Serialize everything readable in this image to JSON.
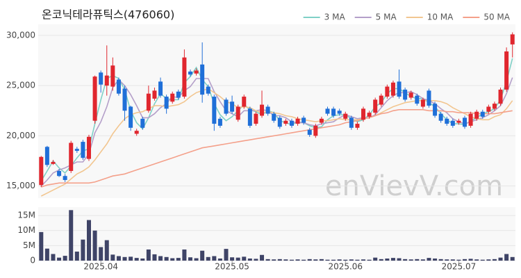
{
  "chart_data": [
    {
      "type": "candlestick",
      "title": "온코닉테라퓨틱스(476060)",
      "watermark": "enVievV.com",
      "up_color": "#e0262e",
      "down_color": "#1f6fd8",
      "grid": true,
      "legend": "top-right",
      "ylim": [
        13800,
        31100
      ],
      "yticks": [
        {
          "value": 15000,
          "label": "15,000"
        },
        {
          "value": 20000,
          "label": "20,000"
        },
        {
          "value": 25000,
          "label": "25,000"
        },
        {
          "value": 30000,
          "label": "30,000"
        }
      ],
      "open": [
        15100,
        18900,
        17200,
        16500,
        16000,
        16500,
        18700,
        19400,
        17700,
        21500,
        26300,
        25000,
        24900,
        25600,
        24700,
        22900,
        20200,
        21700,
        22500,
        23700,
        25400,
        23900,
        23400,
        24400,
        23900,
        26400,
        26200,
        27100,
        24900,
        23900,
        21700,
        23600,
        23400,
        21600,
        22900,
        22700,
        21200,
        22000,
        22900,
        22200,
        21800,
        21200,
        21500,
        21200,
        21800,
        20600,
        20000,
        21300,
        22700,
        22700,
        22500,
        21700,
        21800,
        20800,
        21600,
        21900,
        22300,
        23100,
        23900,
        24000,
        25400,
        24600,
        23800,
        24000,
        22900,
        24500,
        23200,
        22200,
        21700,
        21500,
        21300,
        21800,
        21000,
        21700,
        22400,
        22400,
        22700,
        23200,
        24600,
        29100
      ],
      "high": [
        18000,
        19000,
        17600,
        16700,
        16200,
        19500,
        18900,
        19600,
        20100,
        26000,
        26500,
        29000,
        27800,
        25800,
        25000,
        23000,
        20700,
        21900,
        25000,
        24800,
        25800,
        24100,
        24400,
        24600,
        28600,
        26600,
        26700,
        29300,
        25100,
        24100,
        21900,
        23800,
        24000,
        23100,
        24100,
        22900,
        22400,
        24500,
        23100,
        22400,
        22000,
        21700,
        21700,
        21900,
        22000,
        20800,
        21200,
        21900,
        22900,
        22900,
        22700,
        22400,
        22000,
        21400,
        22900,
        22500,
        23800,
        24200,
        25100,
        25500,
        26600,
        24800,
        24500,
        24200,
        23800,
        24700,
        23400,
        22400,
        21900,
        21700,
        21700,
        22000,
        22400,
        22600,
        22600,
        23100,
        23400,
        24800,
        28800,
        30300
      ],
      "low": [
        14900,
        16900,
        17100,
        15900,
        15400,
        16300,
        18300,
        17600,
        17500,
        21200,
        24300,
        24000,
        24500,
        24000,
        21500,
        20500,
        20000,
        20600,
        22300,
        23500,
        23800,
        22200,
        23200,
        23600,
        23700,
        25900,
        26000,
        23300,
        24000,
        20500,
        20800,
        22000,
        22200,
        21400,
        22700,
        20800,
        21000,
        21800,
        22000,
        21300,
        20700,
        21000,
        20800,
        21000,
        21100,
        19900,
        19800,
        21100,
        22000,
        21800,
        22000,
        21500,
        20600,
        20600,
        21400,
        21700,
        22100,
        22900,
        23700,
        23800,
        23700,
        23400,
        23600,
        23000,
        22700,
        22800,
        21800,
        21300,
        21000,
        20800,
        21100,
        20700,
        20800,
        21500,
        21700,
        22200,
        22500,
        23000,
        24400,
        27800
      ],
      "close": [
        17900,
        17100,
        17400,
        16000,
        15600,
        19300,
        18500,
        17800,
        19900,
        25900,
        25100,
        26000,
        27000,
        24200,
        22500,
        20800,
        20500,
        20800,
        24200,
        24500,
        24000,
        22700,
        24200,
        23800,
        27800,
        26100,
        26500,
        24100,
        24200,
        21200,
        21000,
        22200,
        22400,
        22900,
        23900,
        21000,
        22200,
        23100,
        22200,
        21500,
        20900,
        21500,
        21000,
        21700,
        21300,
        20100,
        21000,
        21700,
        22200,
        22000,
        22200,
        22200,
        20800,
        21200,
        22700,
        22300,
        23600,
        24000,
        24900,
        25300,
        23900,
        23600,
        24300,
        23200,
        23600,
        23000,
        22000,
        21500,
        21200,
        21000,
        21500,
        20900,
        22200,
        22400,
        21900,
        22900,
        23200,
        24600,
        28400,
        30100
      ],
      "series": [
        {
          "name": "3 MA",
          "color": "#7fd0c6",
          "values": [
            15500,
            16500,
            17500,
            16800,
            16300,
            17000,
            17800,
            18500,
            18700,
            21200,
            23600,
            25700,
            26000,
            25700,
            24600,
            22500,
            21300,
            20700,
            21800,
            23200,
            24200,
            23700,
            23600,
            23600,
            25300,
            25900,
            26800,
            25600,
            24900,
            23200,
            22100,
            21500,
            21900,
            22500,
            23100,
            22600,
            22400,
            22100,
            22500,
            22300,
            21500,
            21300,
            21100,
            21400,
            21300,
            21000,
            20800,
            20900,
            21600,
            22000,
            22100,
            22100,
            21700,
            21400,
            21600,
            22100,
            22900,
            23300,
            24200,
            24700,
            24700,
            24300,
            23900,
            23700,
            23700,
            23300,
            22900,
            22200,
            21600,
            21200,
            21200,
            21100,
            21500,
            21800,
            22200,
            22400,
            22700,
            23600,
            25400,
            27700
          ]
        },
        {
          "name": "5 MA",
          "color": "#b49fc9",
          "values": [
            15000,
            15600,
            16300,
            16600,
            16800,
            17100,
            17400,
            17400,
            18200,
            20300,
            21400,
            22900,
            24800,
            25600,
            25000,
            24100,
            23000,
            21800,
            21800,
            22200,
            22800,
            23200,
            23900,
            23800,
            24500,
            24900,
            25700,
            25700,
            25700,
            24400,
            23400,
            22500,
            22200,
            21900,
            22500,
            22500,
            22500,
            22600,
            22500,
            22000,
            22000,
            21800,
            21400,
            21300,
            21300,
            21100,
            21000,
            21200,
            21300,
            21400,
            21800,
            22100,
            21900,
            21700,
            21800,
            21800,
            22100,
            22800,
            23500,
            24000,
            24300,
            24300,
            24400,
            24100,
            23700,
            23500,
            23200,
            22700,
            22300,
            21700,
            21400,
            21200,
            21400,
            21600,
            21800,
            22100,
            22500,
            23000,
            24200,
            25800
          ]
        },
        {
          "name": "10 MA",
          "color": "#f2c690",
          "values": [
            14000,
            14300,
            14600,
            14900,
            15200,
            15700,
            16200,
            16500,
            16900,
            17600,
            18400,
            19200,
            20200,
            21000,
            21700,
            22100,
            22300,
            22400,
            22700,
            23000,
            23000,
            22900,
            23000,
            23100,
            23400,
            23900,
            24300,
            24500,
            24700,
            24300,
            23900,
            23400,
            23200,
            22800,
            22900,
            22800,
            22500,
            22300,
            22400,
            22300,
            22200,
            22000,
            21900,
            21700,
            21600,
            21500,
            21400,
            21500,
            21500,
            21600,
            21700,
            21600,
            21600,
            21600,
            21700,
            21800,
            22000,
            22300,
            22600,
            22900,
            23100,
            23300,
            23400,
            23500,
            23500,
            23500,
            23500,
            23400,
            23200,
            22800,
            22500,
            22200,
            21900,
            21700,
            21600,
            21600,
            21900,
            22100,
            22700,
            23500
          ]
        },
        {
          "name": "50 MA",
          "color": "#f4a08a",
          "values": [
            14900,
            15100,
            15200,
            15300,
            15300,
            15300,
            15300,
            15300,
            15300,
            15400,
            15600,
            15800,
            16000,
            16100,
            16200,
            16400,
            16600,
            16800,
            17000,
            17200,
            17400,
            17600,
            17800,
            18000,
            18200,
            18400,
            18600,
            18800,
            18900,
            19000,
            19100,
            19200,
            19300,
            19400,
            19500,
            19600,
            19700,
            19800,
            19900,
            20000,
            20100,
            20200,
            20300,
            20400,
            20500,
            20600,
            20700,
            20800,
            20900,
            21000,
            21100,
            21300,
            21400,
            21500,
            21700,
            21800,
            22000,
            22200,
            22300,
            22500,
            22600,
            22600,
            22600,
            22600,
            22600,
            22500,
            22500,
            22500,
            22400,
            22400,
            22300,
            22300,
            22300,
            22200,
            22200,
            22200,
            22200,
            22300,
            22400,
            22500
          ]
        }
      ]
    },
    {
      "type": "bar",
      "color": "#3f4467",
      "grid": true,
      "ylim": [
        0,
        17800000
      ],
      "yticks": [
        0,
        {
          "value": 5000000,
          "label": "5M"
        },
        {
          "value": 10000000,
          "label": "10M"
        },
        {
          "value": 15000000,
          "label": "15M"
        }
      ],
      "categories": [
        null,
        null,
        null,
        null,
        null,
        null,
        null,
        null,
        null,
        null,
        "2025.04",
        null,
        null,
        null,
        null,
        null,
        null,
        null,
        null,
        null,
        null,
        null,
        null,
        null,
        null,
        null,
        null,
        null,
        null,
        null,
        null,
        null,
        "2025.05",
        null,
        null,
        null,
        null,
        null,
        null,
        null,
        null,
        null,
        null,
        null,
        null,
        null,
        null,
        null,
        null,
        null,
        null,
        "2025.06",
        null,
        null,
        null,
        null,
        null,
        null,
        null,
        null,
        null,
        null,
        null,
        null,
        null,
        null,
        null,
        null,
        null,
        null,
        "2025.07",
        null,
        null,
        null,
        null,
        null,
        null,
        null,
        null,
        null
      ],
      "values": [
        9500000,
        4000000,
        2200000,
        1000000,
        1600000,
        16800000,
        3000000,
        7000000,
        13500000,
        10000000,
        4500000,
        6800000,
        2000000,
        1500000,
        1200000,
        1300000,
        900000,
        700000,
        3700000,
        2100000,
        1500000,
        1200000,
        800000,
        900000,
        3700000,
        1100000,
        800000,
        3300000,
        1200000,
        1500000,
        700000,
        3900000,
        1100000,
        1000000,
        1300000,
        700000,
        600000,
        1900000,
        500000,
        400000,
        500000,
        400000,
        300000,
        400000,
        300000,
        500000,
        400000,
        500000,
        300000,
        300000,
        400000,
        300000,
        400000,
        300000,
        400000,
        300000,
        1000000,
        500000,
        700000,
        900000,
        800000,
        500000,
        400000,
        500000,
        400000,
        900000,
        700000,
        500000,
        400000,
        400000,
        300000,
        500000,
        600000,
        400000,
        300000,
        400000,
        500000,
        1000000,
        2200000,
        1200000
      ]
    }
  ]
}
